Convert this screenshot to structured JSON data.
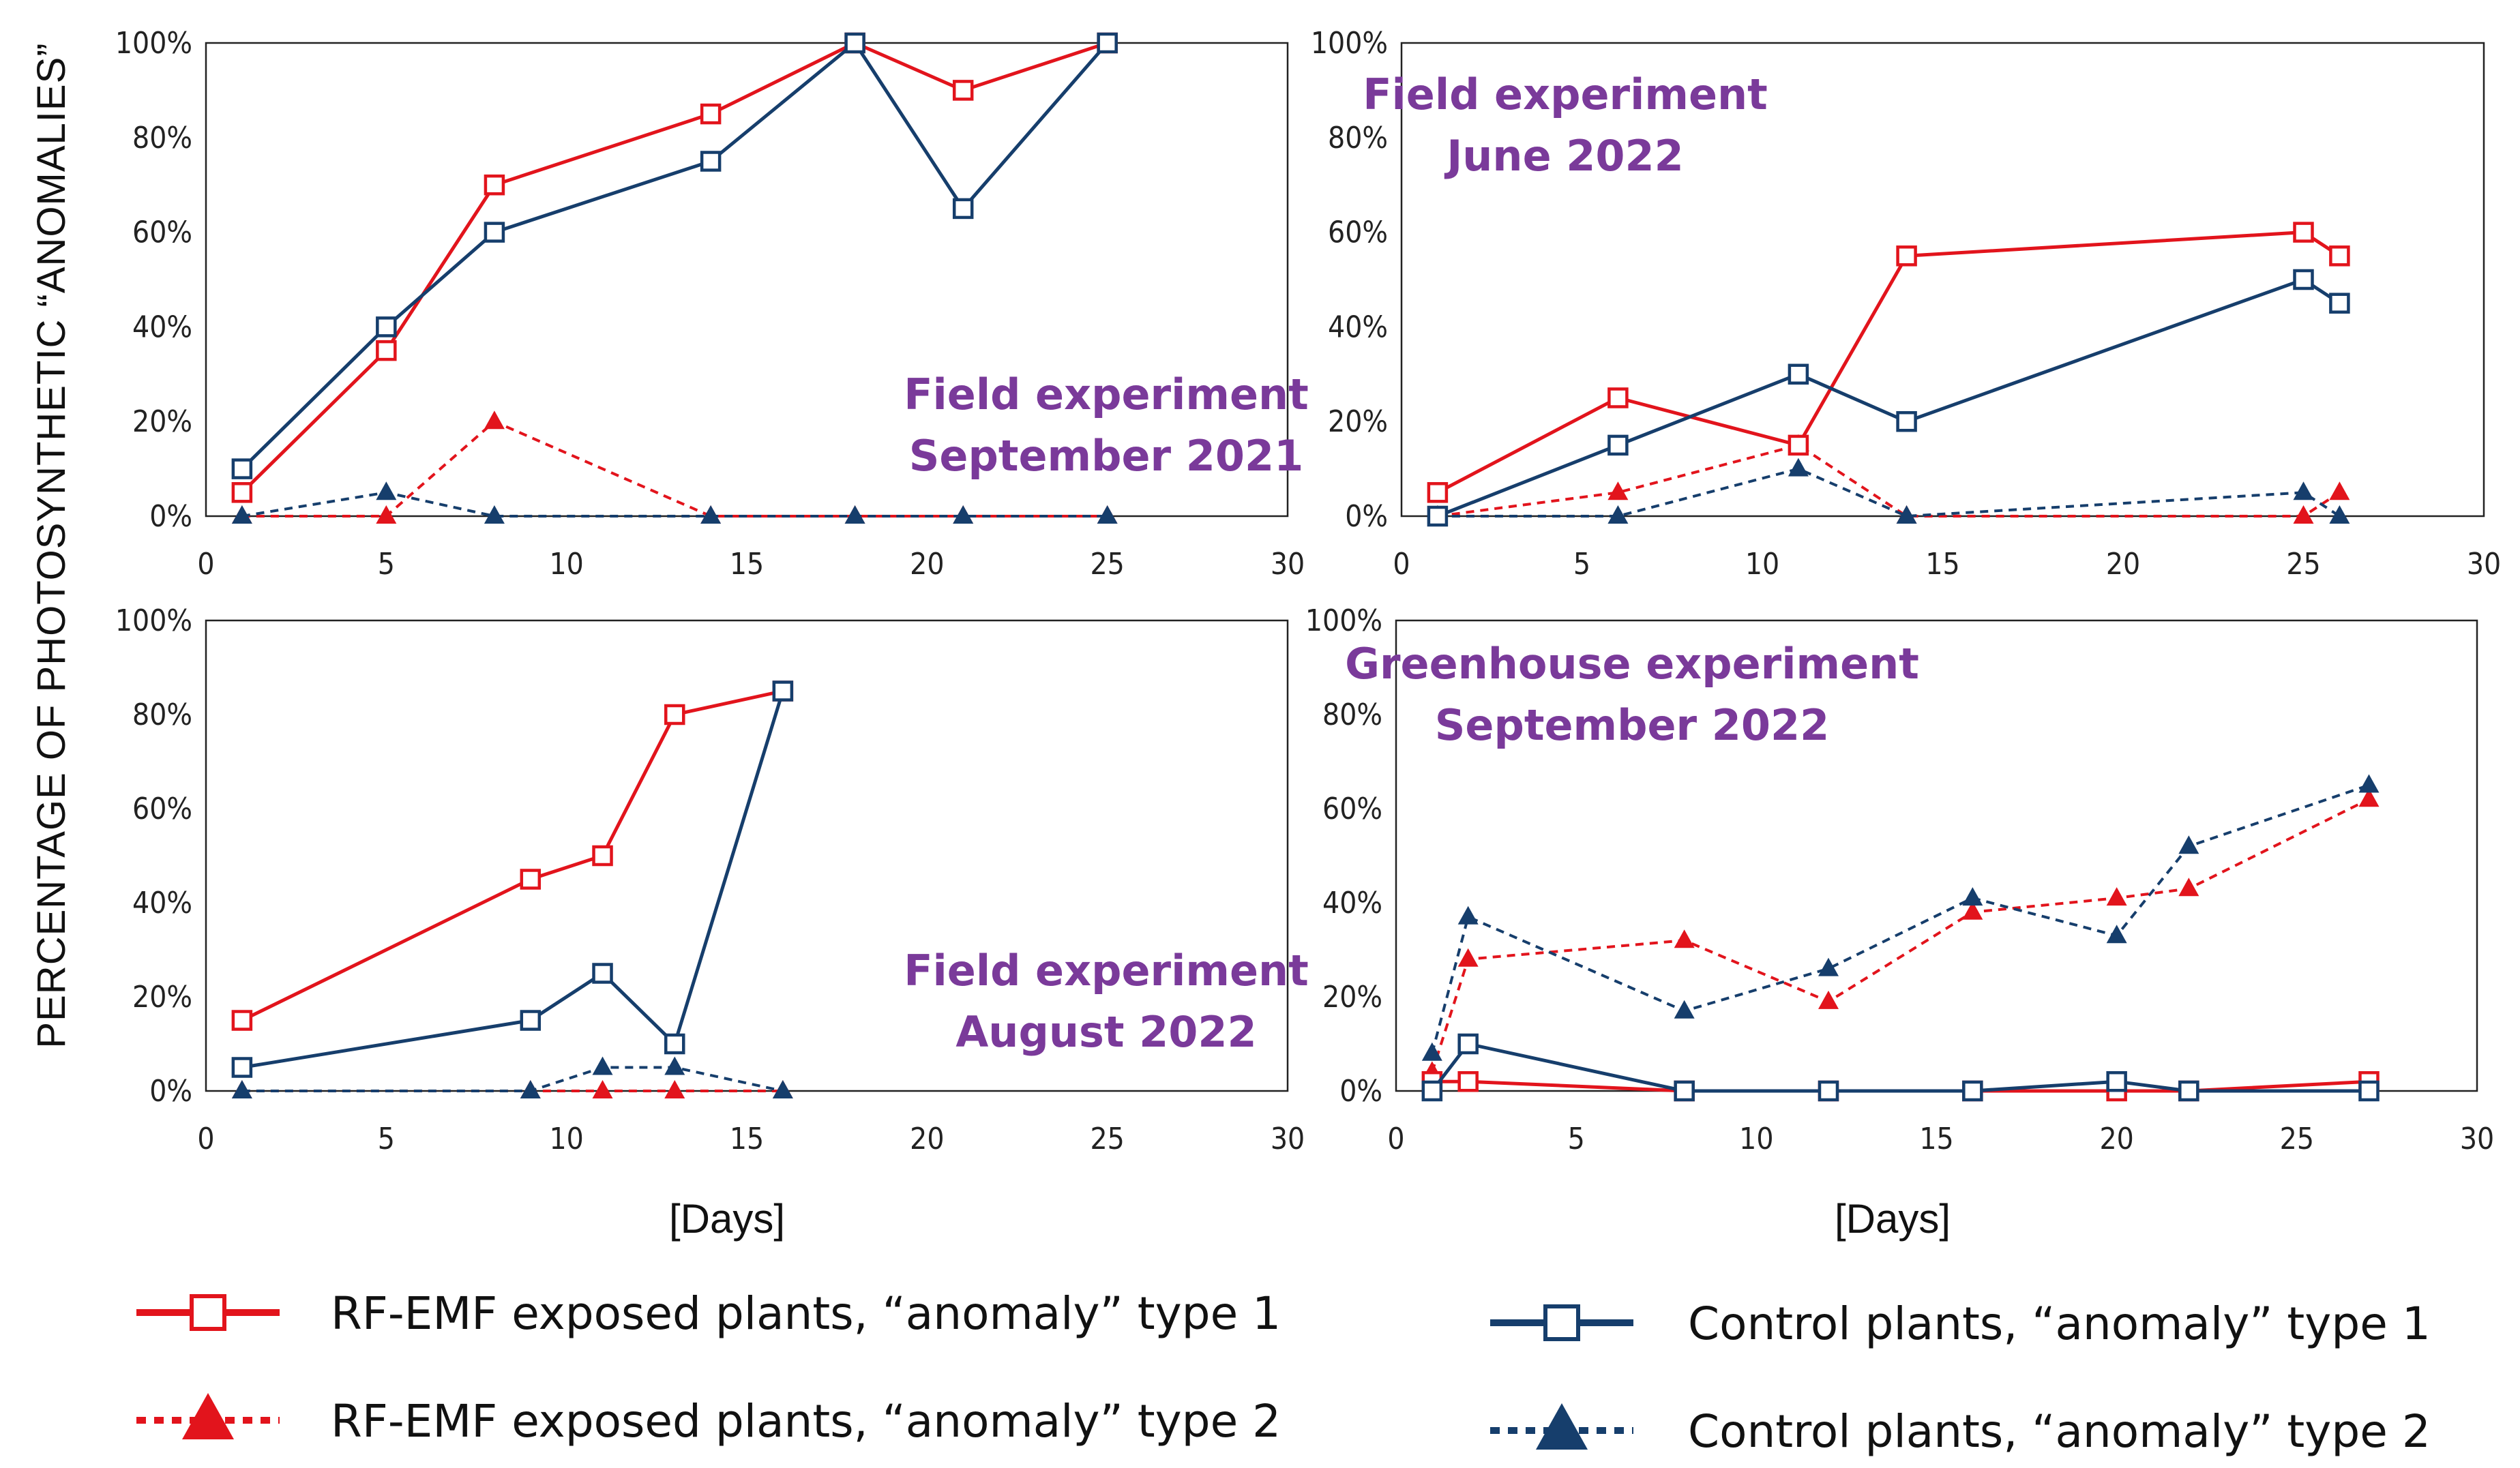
{
  "figure": {
    "y_axis_label": "PERCENTAGE OF PHOTOSYNTHETIC “ANOMALIES”",
    "x_axis_label_left": "[Days]",
    "x_axis_label_right": "[Days]"
  },
  "colors": {
    "rf": "#e2141c",
    "control": "#163e6c",
    "annotation": "#7a3a9a"
  },
  "legend": [
    {
      "key": "rf_t1",
      "label": "RF-EMF exposed plants, “anomaly” type 1",
      "color": "#e2141c",
      "marker": "square",
      "dash": "solid"
    },
    {
      "key": "ctrl_t1",
      "label": "Control plants, “anomaly” type 1",
      "color": "#163e6c",
      "marker": "square",
      "dash": "solid"
    },
    {
      "key": "rf_t2",
      "label": "RF-EMF exposed plants, “anomaly” type 2",
      "color": "#e2141c",
      "marker": "triangle",
      "dash": "dotted"
    },
    {
      "key": "ctrl_t2",
      "label": "Control plants, “anomaly” type 2",
      "color": "#163e6c",
      "marker": "triangle",
      "dash": "dotted"
    }
  ],
  "chart_data": [
    {
      "type": "line",
      "annotation": [
        "Field experiment",
        "September 2021"
      ],
      "xlim": [
        0,
        30
      ],
      "ylim": [
        0,
        100
      ],
      "xticks": [
        "0",
        "5",
        "10",
        "15",
        "20",
        "25",
        "30"
      ],
      "yticks": [
        "0%",
        "20%",
        "40%",
        "60%",
        "80%",
        "100%"
      ],
      "series": [
        {
          "name": "RF-EMF exposed plants, “anomaly” type 1",
          "key": "rf_t1",
          "x": [
            1,
            5,
            8,
            14,
            18,
            21,
            25
          ],
          "y": [
            5,
            35,
            70,
            85,
            100,
            90,
            100
          ]
        },
        {
          "name": "Control plants, “anomaly” type 1",
          "key": "ctrl_t1",
          "x": [
            1,
            5,
            8,
            14,
            18,
            21,
            25
          ],
          "y": [
            10,
            40,
            60,
            75,
            100,
            65,
            100
          ]
        },
        {
          "name": "RF-EMF exposed plants, “anomaly” type 2",
          "key": "rf_t2",
          "x": [
            1,
            5,
            8,
            14,
            18,
            21,
            25
          ],
          "y": [
            0,
            0,
            20,
            0,
            0,
            0,
            0
          ]
        },
        {
          "name": "Control plants, “anomaly” type 2",
          "key": "ctrl_t2",
          "x": [
            1,
            5,
            8,
            14,
            18,
            21,
            25
          ],
          "y": [
            0,
            5,
            0,
            0,
            0,
            0,
            0
          ]
        }
      ]
    },
    {
      "type": "line",
      "annotation": [
        "Field experiment",
        "June 2022"
      ],
      "xlim": [
        0,
        30
      ],
      "ylim": [
        0,
        100
      ],
      "xticks": [
        "0",
        "5",
        "10",
        "15",
        "20",
        "25",
        "30"
      ],
      "yticks": [
        "0%",
        "20%",
        "40%",
        "60%",
        "80%",
        "100%"
      ],
      "series": [
        {
          "name": "RF-EMF exposed plants, “anomaly” type 1",
          "key": "rf_t1",
          "x": [
            1,
            6,
            11,
            14,
            25,
            26
          ],
          "y": [
            5,
            25,
            15,
            55,
            60,
            55
          ]
        },
        {
          "name": "Control plants, “anomaly” type 1",
          "key": "ctrl_t1",
          "x": [
            1,
            6,
            11,
            14,
            25,
            26
          ],
          "y": [
            0,
            15,
            30,
            20,
            50,
            45
          ]
        },
        {
          "name": "RF-EMF exposed plants, “anomaly” type 2",
          "key": "rf_t2",
          "x": [
            1,
            6,
            11,
            14,
            25,
            26
          ],
          "y": [
            0,
            5,
            15,
            0,
            0,
            5
          ]
        },
        {
          "name": "Control plants, “anomaly” type 2",
          "key": "ctrl_t2",
          "x": [
            1,
            6,
            11,
            14,
            25,
            26
          ],
          "y": [
            0,
            0,
            10,
            0,
            5,
            0
          ]
        }
      ]
    },
    {
      "type": "line",
      "annotation": [
        "Field experiment",
        "August 2022"
      ],
      "xlim": [
        0,
        30
      ],
      "ylim": [
        0,
        100
      ],
      "xticks": [
        "0",
        "5",
        "10",
        "15",
        "20",
        "25",
        "30"
      ],
      "yticks": [
        "0%",
        "20%",
        "40%",
        "60%",
        "80%",
        "100%"
      ],
      "series": [
        {
          "name": "RF-EMF exposed plants, “anomaly” type 1",
          "key": "rf_t1",
          "x": [
            1,
            9,
            11,
            13,
            16
          ],
          "y": [
            15,
            45,
            50,
            80,
            85
          ]
        },
        {
          "name": "Control plants, “anomaly” type 1",
          "key": "ctrl_t1",
          "x": [
            1,
            9,
            11,
            13,
            16
          ],
          "y": [
            5,
            15,
            25,
            10,
            85
          ]
        },
        {
          "name": "RF-EMF exposed plants, “anomaly” type 2",
          "key": "rf_t2",
          "x": [
            1,
            9,
            11,
            13,
            16
          ],
          "y": [
            0,
            0,
            0,
            0,
            0
          ]
        },
        {
          "name": "Control plants, “anomaly” type 2",
          "key": "ctrl_t2",
          "x": [
            1,
            9,
            11,
            13,
            16
          ],
          "y": [
            0,
            0,
            5,
            5,
            0
          ]
        }
      ]
    },
    {
      "type": "line",
      "annotation": [
        "Greenhouse experiment",
        "September 2022"
      ],
      "xlim": [
        0,
        30
      ],
      "ylim": [
        0,
        100
      ],
      "xticks": [
        "0",
        "5",
        "10",
        "15",
        "20",
        "25",
        "30"
      ],
      "yticks": [
        "0%",
        "20%",
        "40%",
        "60%",
        "80%",
        "100%"
      ],
      "series": [
        {
          "name": "RF-EMF exposed plants, “anomaly” type 1",
          "key": "rf_t1",
          "x": [
            1,
            2,
            8,
            12,
            16,
            20,
            22,
            27
          ],
          "y": [
            2,
            2,
            0,
            0,
            0,
            0,
            0,
            2
          ]
        },
        {
          "name": "Control plants, “anomaly” type 1",
          "key": "ctrl_t1",
          "x": [
            1,
            2,
            8,
            12,
            16,
            20,
            22,
            27
          ],
          "y": [
            0,
            10,
            0,
            0,
            0,
            2,
            0,
            0
          ]
        },
        {
          "name": "RF-EMF exposed plants, “anomaly” type 2",
          "key": "rf_t2",
          "x": [
            1,
            2,
            8,
            12,
            16,
            20,
            22,
            27
          ],
          "y": [
            4,
            28,
            32,
            19,
            38,
            41,
            43,
            62
          ]
        },
        {
          "name": "Control plants, “anomaly” type 2",
          "key": "ctrl_t2",
          "x": [
            1,
            2,
            8,
            12,
            16,
            20,
            22,
            27
          ],
          "y": [
            8,
            37,
            17,
            26,
            41,
            33,
            52,
            65
          ]
        }
      ]
    }
  ]
}
